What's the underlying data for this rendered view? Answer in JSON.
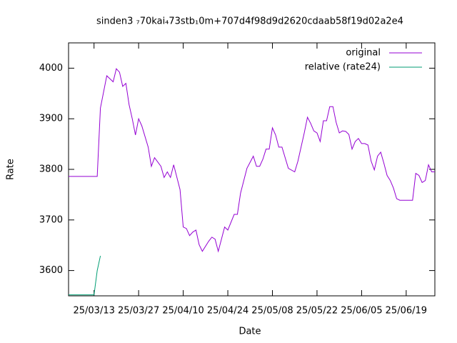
{
  "chart_data": {
    "type": "line",
    "title": "sinden3 ₇70kai₄73stb₁0m+707d4f98d9d2620cdaab58f19d02a2e4",
    "x_label": "Date",
    "y_label": "Rate",
    "x": [
      "25/03/05",
      "25/03/13",
      "25/03/14",
      "25/03/15",
      "25/03/17",
      "25/03/19",
      "25/03/20",
      "25/03/21",
      "25/03/22",
      "25/03/23",
      "25/03/24",
      "25/03/25",
      "25/03/26",
      "25/03/27",
      "25/03/28",
      "25/03/30",
      "25/03/31",
      "25/04/01",
      "25/04/03",
      "25/04/04",
      "25/04/05",
      "25/04/06",
      "25/04/07",
      "25/04/09",
      "25/04/10",
      "25/04/11",
      "25/04/12",
      "25/04/13",
      "25/04/14",
      "25/04/15",
      "25/04/16",
      "25/04/18",
      "25/04/19",
      "25/04/20",
      "25/04/21",
      "25/04/22",
      "25/04/23",
      "25/04/24",
      "25/04/26",
      "25/04/27",
      "25/04/28",
      "25/04/30",
      "25/05/02",
      "25/05/03",
      "25/05/04",
      "25/05/05",
      "25/05/06",
      "25/05/07",
      "25/05/08",
      "25/05/09",
      "25/05/10",
      "25/05/11",
      "25/05/13",
      "25/05/15",
      "25/05/16",
      "25/05/18",
      "25/05/19",
      "25/05/20",
      "25/05/21",
      "25/05/22",
      "25/05/23",
      "25/05/24",
      "25/05/25",
      "25/05/26",
      "25/05/27",
      "25/05/28",
      "25/05/29",
      "25/05/30",
      "25/05/31",
      "25/06/01",
      "25/06/02",
      "25/06/03",
      "25/06/04",
      "25/06/05",
      "25/06/06",
      "25/06/07",
      "25/06/08",
      "25/06/09",
      "25/06/10",
      "25/06/11",
      "25/06/12",
      "25/06/13",
      "25/06/14",
      "25/06/15",
      "25/06/16",
      "25/06/17",
      "25/06/21",
      "25/06/22",
      "25/06/23",
      "25/06/24",
      "25/06/25",
      "25/06/26",
      "25/06/27",
      "25/06/28"
    ],
    "series": [
      {
        "name": "original",
        "color": "#9400d3",
        "values": [
          3786,
          3786,
          3786,
          3921,
          3985,
          3973,
          3999,
          3992,
          3964,
          3970,
          3928,
          3900,
          3868,
          3900,
          3886,
          3844,
          3806,
          3823,
          3806,
          3784,
          3795,
          3784,
          3809,
          3760,
          3686,
          3683,
          3669,
          3676,
          3680,
          3651,
          3638,
          3658,
          3666,
          3662,
          3638,
          3662,
          3686,
          3680,
          3711,
          3711,
          3753,
          3802,
          3826,
          3806,
          3806,
          3820,
          3840,
          3840,
          3882,
          3868,
          3844,
          3844,
          3802,
          3795,
          3816,
          3872,
          3903,
          3891,
          3876,
          3872,
          3855,
          3896,
          3896,
          3924,
          3924,
          3893,
          3872,
          3876,
          3875,
          3869,
          3840,
          3855,
          3861,
          3851,
          3851,
          3848,
          3816,
          3799,
          3826,
          3834,
          3812,
          3788,
          3778,
          3763,
          3742,
          3739,
          3739,
          3792,
          3788,
          3774,
          3778,
          3809,
          3795,
          3795
        ]
      },
      {
        "name": "relative (rate24)",
        "color": "#009e73",
        "x": [
          "25/03/05",
          "25/03/13",
          "25/03/14",
          "25/03/15"
        ],
        "values": [
          3552,
          3552,
          3600,
          3629
        ]
      }
    ],
    "xlim": [
      "25/03/05",
      "25/06/28"
    ],
    "xticks": [
      "25/03/13",
      "25/03/27",
      "25/04/10",
      "25/04/24",
      "25/05/08",
      "25/05/22",
      "25/06/05",
      "25/06/19"
    ],
    "ylim": [
      3550,
      4050
    ],
    "yticks": [
      3600,
      3700,
      3800,
      3900,
      4000
    ],
    "legend": "top-right",
    "grid": false
  }
}
